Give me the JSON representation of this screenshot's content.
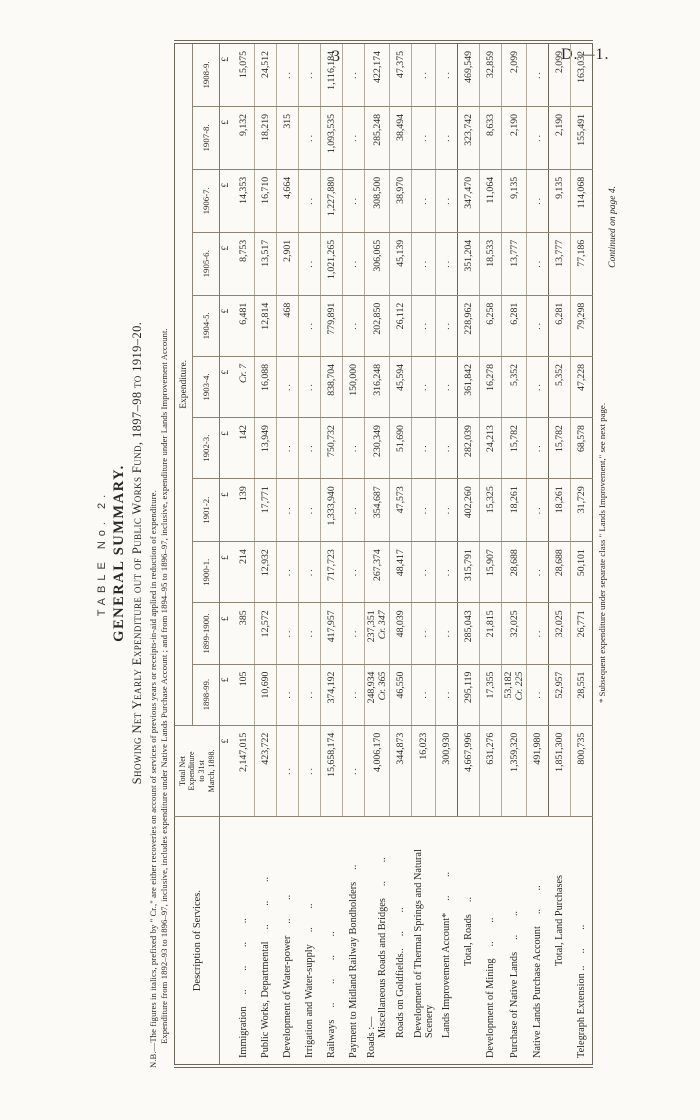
{
  "page": {
    "number": "3",
    "doc_ref": "D.—1.",
    "table_label": "TABLE No. 2.",
    "title": "GENERAL SUMMARY.",
    "subtitle": "Showing Net Yearly Expenditure out of Public Works Fund, 1897–98 to 1919–20.",
    "nb_line1": "N.B.—The figures in italics, prefixed by \" Cr.,\" are either recoveries on account of services of previous years or receipts-in-aid applied in reduction of expenditure.",
    "nb_line2": "Expenditure from 1892–93 to 1896–97, inclusive, includes expenditure under Native Lands Purchase Account ; and from 1894–95 to 1896–97, inclusive, expenditure under Lands Improvement Account.",
    "footnote": "* Subsequent expenditure under separate class \" Lands Improvement,\" see next page.",
    "continued": "Continued on page 4."
  },
  "table": {
    "col_desc_header": "Description of Services.",
    "col_total_header": "Total Net\nExpenditure\nto 31st\nMarch, 1898.",
    "expenditure_header": "Expenditure.",
    "currency": "£",
    "years": [
      "1898-99.",
      "1899-1900.",
      "1900-1.",
      "1901-2.",
      "1902-3.",
      "1903-4.",
      "1904-5.",
      "1905-6.",
      "1906-7.",
      "1907-8.",
      "1908-9."
    ],
    "rows": [
      {
        "label": "Immigration",
        "leaders": ".. .. .. ..",
        "total": "2,147,015",
        "values": [
          "105",
          "385",
          "214",
          "139",
          "142",
          "Cr. 7",
          "6,481",
          "8,753",
          "14,353",
          "9,132",
          "15,075"
        ]
      },
      {
        "label": "Public Works, Departmental",
        "leaders": ".. .. ..",
        "total": "423,722",
        "values": [
          "10,690",
          "12,572",
          "12,932",
          "17,771",
          "13,949",
          "16,088",
          "12,814",
          "13,517",
          "16,710",
          "18,219",
          "24,512"
        ]
      },
      {
        "label": "Development of Water-power",
        "leaders": ".. ..",
        "total": "..",
        "values": [
          "..",
          "..",
          "..",
          "..",
          "..",
          "..",
          "468",
          "2,901",
          "4,664",
          "315",
          ".."
        ]
      },
      {
        "label": "Irrigation and Water-supply",
        "leaders": ".. ..",
        "total": "..",
        "values": [
          "..",
          "..",
          "..",
          "..",
          "..",
          "..",
          "..",
          "..",
          "..",
          "..",
          ".."
        ]
      },
      {
        "label": "Railways",
        "leaders": ".. .. .. ..",
        "total": "15,658,174",
        "values": [
          "374,192",
          "417,957",
          "717,723",
          "1,333,940",
          "750,732",
          "838,704",
          "779,891",
          "1,021,265",
          "1,227,880",
          "1,093,535",
          "1,116,184"
        ]
      },
      {
        "label": "Payment to Midland Railway Bondholders",
        "leaders": "..",
        "total": "..",
        "values": [
          "..",
          "..",
          "..",
          "..",
          "..",
          "150,000",
          "..",
          "..",
          "..",
          "..",
          ".."
        ]
      },
      {
        "group": "Roads :—",
        "label": "Miscellaneous Roads and Bridges",
        "leaders": ".. ..",
        "indent": true,
        "total": "4,006,170",
        "values": [
          "248,934¶Cr. 365",
          "237,351¶Cr. 347",
          "267,374",
          "354,687",
          "230,349",
          "316,248",
          "202,850",
          "306,065",
          "308,500",
          "285,248",
          "422,174"
        ]
      },
      {
        "label": "Roads on Goldfields..",
        "leaders": ".. ..",
        "indent": true,
        "total": "344,873",
        "values": [
          "46,550",
          "48,039",
          "48,417",
          "47,573",
          "51,690",
          "45,594",
          "26,112",
          "45,139",
          "38,970",
          "38,494",
          "47,375"
        ]
      },
      {
        "label": "Development of Thermal Springs and Natural Scenery",
        "leaders": "",
        "indent": true,
        "total": "16,023",
        "values": [
          "..",
          "..",
          "..",
          "..",
          "..",
          "..",
          "..",
          "..",
          "..",
          "..",
          ".."
        ]
      },
      {
        "label": "Lands Improvement Account*",
        "leaders": ".. ..",
        "indent": true,
        "total": "300,930",
        "values": [
          "..",
          "..",
          "..",
          "..",
          "..",
          "..",
          "..",
          "..",
          "..",
          "..",
          ".."
        ]
      },
      {
        "label": "Total, Roads",
        "leaders": "..",
        "center": true,
        "sum": true,
        "total": "4,667,996",
        "values": [
          "295,119",
          "285,043",
          "315,791",
          "402,260",
          "282,039",
          "361,842",
          "228,962",
          "351,204",
          "347,470",
          "323,742",
          "469,549"
        ]
      },
      {
        "label": "Development of Mining",
        "leaders": ".. ..",
        "total": "631,276",
        "values": [
          "17,355",
          "21,815",
          "15,907",
          "15,325",
          "24,213",
          "16,278",
          "6,258",
          "18,533",
          "11,064",
          "8,633",
          "32,859"
        ]
      },
      {
        "label": "Purchase of Native Lands",
        "leaders": ".. ..",
        "total": "1,359,320",
        "values": [
          "53,182¶Cr. 225",
          "32,025",
          "28,688",
          "18,261",
          "15,782",
          "5,352",
          "6,281",
          "13,777",
          "9,135",
          "2,190",
          "2,099"
        ]
      },
      {
        "label": "Native Lands Purchase Account",
        "leaders": ".. ..",
        "total": "491,980",
        "values": [
          "..",
          "..",
          "..",
          "..",
          "..",
          "..",
          "..",
          "..",
          "..",
          "..",
          ".."
        ]
      },
      {
        "label": "Total, Land Purchases",
        "leaders": "",
        "center": true,
        "sum": true,
        "total": "1,851,300",
        "values": [
          "52,957",
          "32,025",
          "28,688",
          "18,261",
          "15,782",
          "5,352",
          "6,281",
          "13,777",
          "9,135",
          "2,190",
          "2,099"
        ]
      },
      {
        "label": "Telegraph Extension ..",
        "leaders": ".. ..",
        "total": "800,735",
        "values": [
          "28,551",
          "26,771",
          "50,101",
          "31,729",
          "68,578",
          "47,228",
          "79,298",
          "77,186",
          "114,068",
          "155,491",
          "163,032"
        ]
      }
    ]
  }
}
